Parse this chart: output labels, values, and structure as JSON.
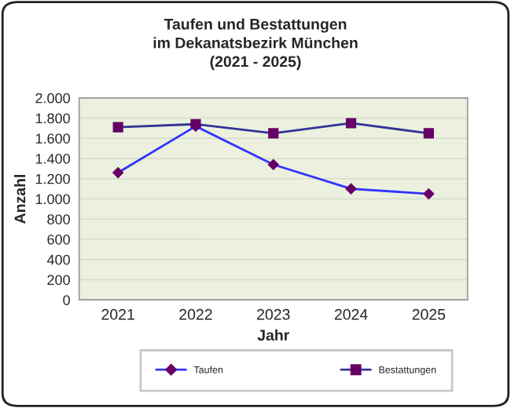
{
  "chart_data": {
    "type": "line",
    "title": "Taufen und Bestattungen\nim Dekanatsbezirk München\n(2021 - 2025)",
    "xlabel": "Jahr",
    "ylabel": "Anzahl",
    "categories": [
      "2021",
      "2022",
      "2023",
      "2024",
      "2025"
    ],
    "series": [
      {
        "name": "Taufen",
        "color": "#3333ff",
        "marker": "diamond",
        "values": [
          1260,
          1720,
          1340,
          1100,
          1050
        ]
      },
      {
        "name": "Bestattungen",
        "color": "#333399",
        "marker": "square",
        "values": [
          1710,
          1740,
          1650,
          1750,
          1650
        ]
      }
    ],
    "ylim": [
      0,
      2000
    ],
    "yticks": [
      0,
      200,
      400,
      600,
      800,
      {
        "value": 1000,
        "label": "1.000"
      },
      {
        "value": 1200,
        "label": "1.200"
      },
      {
        "value": 1400,
        "label": "1.400"
      },
      {
        "value": 1600,
        "label": "1.600"
      },
      {
        "value": 1800,
        "label": "1.800"
      },
      {
        "value": 2000,
        "label": "2.000"
      }
    ],
    "grid": "y",
    "legend": "bottom"
  }
}
